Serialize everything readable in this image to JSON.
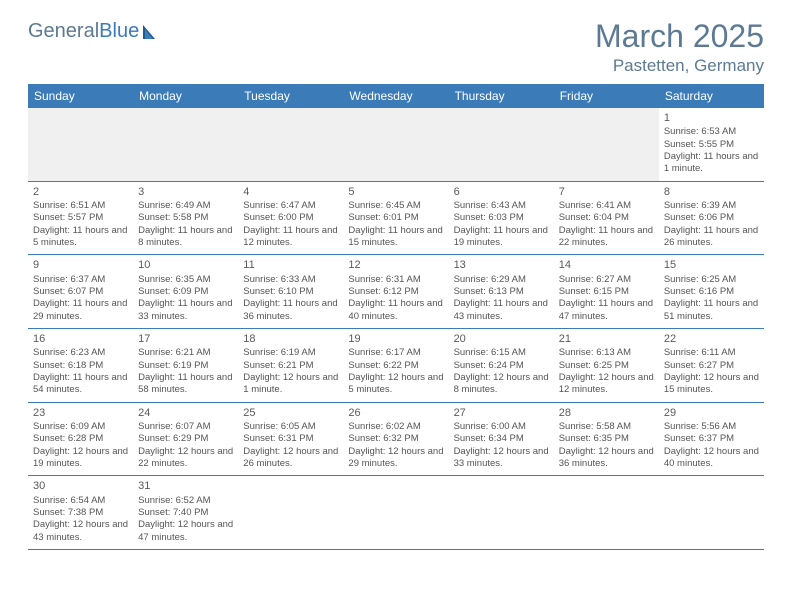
{
  "brand": {
    "left": "General",
    "right": "Blue"
  },
  "title": "March 2025",
  "location": "Pastetten, Germany",
  "colors": {
    "header_bg": "#3a7bb8",
    "header_text": "#ffffff",
    "accent": "#5d7a94",
    "rule": "#3a7bb8",
    "blank_bg": "#f0f0f0"
  },
  "day_names": [
    "Sunday",
    "Monday",
    "Tuesday",
    "Wednesday",
    "Thursday",
    "Friday",
    "Saturday"
  ],
  "weeks": [
    [
      null,
      null,
      null,
      null,
      null,
      null,
      {
        "d": "1",
        "sr": "Sunrise: 6:53 AM",
        "ss": "Sunset: 5:55 PM",
        "dl": "Daylight: 11 hours and 1 minute."
      }
    ],
    [
      {
        "d": "2",
        "sr": "Sunrise: 6:51 AM",
        "ss": "Sunset: 5:57 PM",
        "dl": "Daylight: 11 hours and 5 minutes."
      },
      {
        "d": "3",
        "sr": "Sunrise: 6:49 AM",
        "ss": "Sunset: 5:58 PM",
        "dl": "Daylight: 11 hours and 8 minutes."
      },
      {
        "d": "4",
        "sr": "Sunrise: 6:47 AM",
        "ss": "Sunset: 6:00 PM",
        "dl": "Daylight: 11 hours and 12 minutes."
      },
      {
        "d": "5",
        "sr": "Sunrise: 6:45 AM",
        "ss": "Sunset: 6:01 PM",
        "dl": "Daylight: 11 hours and 15 minutes."
      },
      {
        "d": "6",
        "sr": "Sunrise: 6:43 AM",
        "ss": "Sunset: 6:03 PM",
        "dl": "Daylight: 11 hours and 19 minutes."
      },
      {
        "d": "7",
        "sr": "Sunrise: 6:41 AM",
        "ss": "Sunset: 6:04 PM",
        "dl": "Daylight: 11 hours and 22 minutes."
      },
      {
        "d": "8",
        "sr": "Sunrise: 6:39 AM",
        "ss": "Sunset: 6:06 PM",
        "dl": "Daylight: 11 hours and 26 minutes."
      }
    ],
    [
      {
        "d": "9",
        "sr": "Sunrise: 6:37 AM",
        "ss": "Sunset: 6:07 PM",
        "dl": "Daylight: 11 hours and 29 minutes."
      },
      {
        "d": "10",
        "sr": "Sunrise: 6:35 AM",
        "ss": "Sunset: 6:09 PM",
        "dl": "Daylight: 11 hours and 33 minutes."
      },
      {
        "d": "11",
        "sr": "Sunrise: 6:33 AM",
        "ss": "Sunset: 6:10 PM",
        "dl": "Daylight: 11 hours and 36 minutes."
      },
      {
        "d": "12",
        "sr": "Sunrise: 6:31 AM",
        "ss": "Sunset: 6:12 PM",
        "dl": "Daylight: 11 hours and 40 minutes."
      },
      {
        "d": "13",
        "sr": "Sunrise: 6:29 AM",
        "ss": "Sunset: 6:13 PM",
        "dl": "Daylight: 11 hours and 43 minutes."
      },
      {
        "d": "14",
        "sr": "Sunrise: 6:27 AM",
        "ss": "Sunset: 6:15 PM",
        "dl": "Daylight: 11 hours and 47 minutes."
      },
      {
        "d": "15",
        "sr": "Sunrise: 6:25 AM",
        "ss": "Sunset: 6:16 PM",
        "dl": "Daylight: 11 hours and 51 minutes."
      }
    ],
    [
      {
        "d": "16",
        "sr": "Sunrise: 6:23 AM",
        "ss": "Sunset: 6:18 PM",
        "dl": "Daylight: 11 hours and 54 minutes."
      },
      {
        "d": "17",
        "sr": "Sunrise: 6:21 AM",
        "ss": "Sunset: 6:19 PM",
        "dl": "Daylight: 11 hours and 58 minutes."
      },
      {
        "d": "18",
        "sr": "Sunrise: 6:19 AM",
        "ss": "Sunset: 6:21 PM",
        "dl": "Daylight: 12 hours and 1 minute."
      },
      {
        "d": "19",
        "sr": "Sunrise: 6:17 AM",
        "ss": "Sunset: 6:22 PM",
        "dl": "Daylight: 12 hours and 5 minutes."
      },
      {
        "d": "20",
        "sr": "Sunrise: 6:15 AM",
        "ss": "Sunset: 6:24 PM",
        "dl": "Daylight: 12 hours and 8 minutes."
      },
      {
        "d": "21",
        "sr": "Sunrise: 6:13 AM",
        "ss": "Sunset: 6:25 PM",
        "dl": "Daylight: 12 hours and 12 minutes."
      },
      {
        "d": "22",
        "sr": "Sunrise: 6:11 AM",
        "ss": "Sunset: 6:27 PM",
        "dl": "Daylight: 12 hours and 15 minutes."
      }
    ],
    [
      {
        "d": "23",
        "sr": "Sunrise: 6:09 AM",
        "ss": "Sunset: 6:28 PM",
        "dl": "Daylight: 12 hours and 19 minutes."
      },
      {
        "d": "24",
        "sr": "Sunrise: 6:07 AM",
        "ss": "Sunset: 6:29 PM",
        "dl": "Daylight: 12 hours and 22 minutes."
      },
      {
        "d": "25",
        "sr": "Sunrise: 6:05 AM",
        "ss": "Sunset: 6:31 PM",
        "dl": "Daylight: 12 hours and 26 minutes."
      },
      {
        "d": "26",
        "sr": "Sunrise: 6:02 AM",
        "ss": "Sunset: 6:32 PM",
        "dl": "Daylight: 12 hours and 29 minutes."
      },
      {
        "d": "27",
        "sr": "Sunrise: 6:00 AM",
        "ss": "Sunset: 6:34 PM",
        "dl": "Daylight: 12 hours and 33 minutes."
      },
      {
        "d": "28",
        "sr": "Sunrise: 5:58 AM",
        "ss": "Sunset: 6:35 PM",
        "dl": "Daylight: 12 hours and 36 minutes."
      },
      {
        "d": "29",
        "sr": "Sunrise: 5:56 AM",
        "ss": "Sunset: 6:37 PM",
        "dl": "Daylight: 12 hours and 40 minutes."
      }
    ],
    [
      {
        "d": "30",
        "sr": "Sunrise: 6:54 AM",
        "ss": "Sunset: 7:38 PM",
        "dl": "Daylight: 12 hours and 43 minutes."
      },
      {
        "d": "31",
        "sr": "Sunrise: 6:52 AM",
        "ss": "Sunset: 7:40 PM",
        "dl": "Daylight: 12 hours and 47 minutes."
      },
      null,
      null,
      null,
      null,
      null
    ]
  ]
}
